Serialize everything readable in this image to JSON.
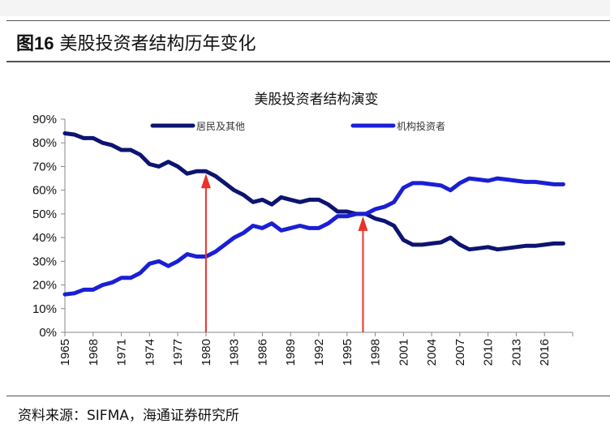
{
  "figure_label": "图16",
  "figure_title": "美股投资者结构历年变化",
  "source": "资料来源：SIFMA，海通证券研究所",
  "chart_data": {
    "type": "line",
    "title": "美股投资者结构演变",
    "xlabel": "",
    "ylabel": "",
    "xlim": [
      1965,
      2019
    ],
    "ylim": [
      0,
      90
    ],
    "y_ticks": [
      "0%",
      "10%",
      "20%",
      "30%",
      "40%",
      "50%",
      "60%",
      "70%",
      "80%",
      "90%"
    ],
    "x_ticks": [
      "1965",
      "1968",
      "1971",
      "1974",
      "1977",
      "1980",
      "1983",
      "1986",
      "1989",
      "1992",
      "1995",
      "1998",
      "2001",
      "2004",
      "2007",
      "2010",
      "2013",
      "2016"
    ],
    "legend_position": "top",
    "grid": false,
    "x": [
      1965,
      1966,
      1967,
      1968,
      1969,
      1970,
      1971,
      1972,
      1973,
      1974,
      1975,
      1976,
      1977,
      1978,
      1979,
      1980,
      1981,
      1982,
      1983,
      1984,
      1985,
      1986,
      1987,
      1988,
      1989,
      1990,
      1991,
      1992,
      1993,
      1994,
      1995,
      1996,
      1997,
      1998,
      1999,
      2000,
      2001,
      2002,
      2003,
      2004,
      2005,
      2006,
      2007,
      2008,
      2009,
      2010,
      2011,
      2012,
      2013,
      2014,
      2015,
      2016,
      2017,
      2018
    ],
    "series": [
      {
        "name": "居民及其他",
        "color": "#0d1470",
        "values": [
          84,
          83.5,
          82,
          82,
          80,
          79,
          77,
          77,
          75,
          71,
          70,
          72,
          70,
          67,
          68,
          68,
          66,
          63,
          60,
          58,
          55,
          56,
          54,
          57,
          56,
          55,
          56,
          56,
          54,
          51,
          51,
          50,
          50,
          48,
          47,
          45,
          39,
          37,
          37,
          37.5,
          38,
          40,
          37,
          35,
          35.5,
          36,
          35,
          35.5,
          36,
          36.5,
          36.5,
          37,
          37.5,
          37.5
        ]
      },
      {
        "name": "机构投资者",
        "color": "#1a1fd6",
        "values": [
          16,
          16.5,
          18,
          18,
          20,
          21,
          23,
          23,
          25,
          29,
          30,
          28,
          30,
          33,
          32,
          32,
          34,
          37,
          40,
          42,
          45,
          44,
          46,
          43,
          44,
          45,
          44,
          44,
          46,
          49,
          49,
          50,
          50,
          52,
          53,
          55,
          61,
          63,
          63,
          62.5,
          62,
          60,
          63,
          65,
          64.5,
          64,
          65,
          64.5,
          64,
          63.5,
          63.5,
          63,
          62.5,
          62.5
        ]
      }
    ],
    "annotations": [
      {
        "type": "arrow",
        "x": 1980,
        "y": 68,
        "color": "#e8322a"
      },
      {
        "type": "arrow",
        "x": 1996.7,
        "y": 50,
        "color": "#e8322a"
      }
    ]
  }
}
